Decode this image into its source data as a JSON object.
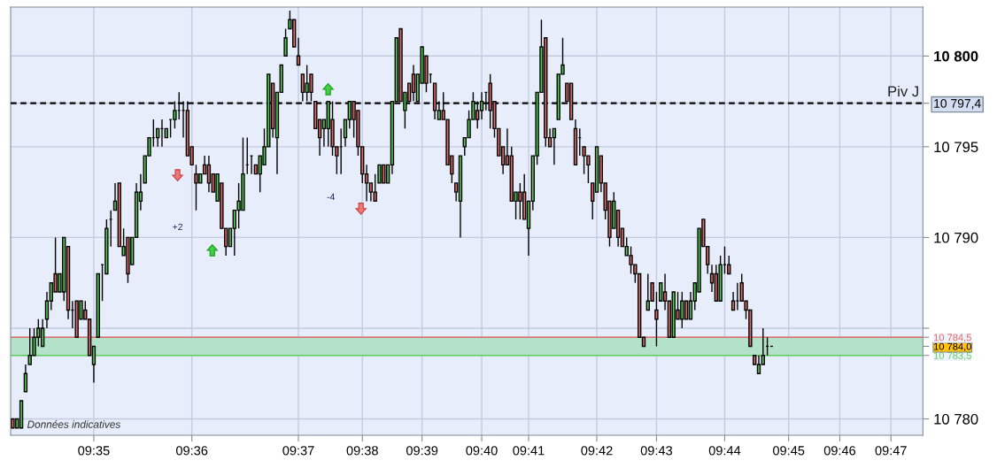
{
  "chart_data": {
    "type": "candlestick",
    "categories": [
      null,
      null,
      null,
      null,
      null,
      null,
      null,
      null,
      null,
      null,
      null,
      null,
      null,
      null,
      null,
      null,
      null,
      null,
      null,
      "09:35",
      null,
      null,
      null,
      null,
      null,
      null,
      null,
      null,
      null,
      null,
      null,
      null,
      null,
      null,
      null,
      null,
      null,
      null,
      null,
      null,
      null,
      null,
      "09:36",
      null,
      null,
      null,
      null,
      null,
      null,
      null,
      null,
      null,
      null,
      null,
      null,
      null,
      null,
      null,
      null,
      null,
      null,
      null,
      null,
      null,
      null,
      null,
      null,
      "09:37",
      null,
      null,
      null,
      null,
      null,
      null,
      null,
      null,
      null,
      null,
      null,
      null,
      null,
      null,
      "09:38",
      null,
      null,
      null,
      null,
      null,
      null,
      null,
      null,
      null,
      null,
      null,
      null,
      null,
      "09:39",
      null,
      null,
      null,
      null,
      null,
      null,
      null,
      null,
      null,
      null,
      null,
      null,
      null,
      "09:40",
      null,
      null,
      null,
      null,
      null,
      null,
      null,
      null,
      null,
      null,
      "09:41",
      null,
      null,
      null,
      null,
      null,
      null,
      null,
      null,
      null,
      null,
      null,
      null,
      null,
      null,
      null,
      "09:42",
      null,
      null,
      null,
      null,
      null,
      null,
      null,
      null,
      null,
      null,
      null,
      null,
      null,
      "09:43",
      null,
      null,
      null,
      null,
      null,
      null,
      null,
      null,
      null,
      null,
      null,
      null,
      null,
      null,
      null,
      "09:44",
      null,
      null,
      null,
      null,
      null,
      null,
      null,
      null,
      null,
      null,
      null,
      null,
      null,
      null,
      "09:45",
      null,
      null,
      null,
      null,
      null,
      null,
      null,
      null,
      null,
      null,
      null,
      "09:46",
      null,
      null,
      null,
      null,
      null,
      null,
      null,
      null,
      null,
      null,
      null,
      "09:47",
      null,
      null,
      null,
      null,
      null,
      null,
      null
    ],
    "ohlc": [
      [
        10780,
        10780,
        10779.5,
        10779.5
      ],
      [
        10779.5,
        10780,
        10779.5,
        10780
      ],
      [
        10779.5,
        10781,
        10779.5,
        10781
      ],
      [
        10781.5,
        10783,
        10781.5,
        10782.5
      ],
      [
        10783,
        10785,
        10783,
        10783.5
      ],
      [
        10783.5,
        10785,
        10783.5,
        10784.5
      ],
      [
        10784.5,
        10785.5,
        10784,
        10785
      ],
      [
        10784,
        10785.5,
        10784,
        10785
      ],
      [
        10785.5,
        10787,
        10785,
        10786.5
      ],
      [
        10786.5,
        10787.5,
        10786,
        10787.5
      ],
      [
        10788,
        10790,
        10787,
        10787
      ],
      [
        10787,
        10788,
        10787,
        10788
      ],
      [
        10787,
        10790,
        10786.5,
        10790
      ],
      [
        10789.5,
        10789.5,
        10785.5,
        10786
      ],
      [
        10786,
        10786.5,
        10785,
        10786
      ],
      [
        10786.5,
        10786.5,
        10784.5,
        10784.5
      ],
      [
        10785.5,
        10786.5,
        10785.5,
        10786.5
      ],
      [
        10786,
        10786.5,
        10785.5,
        10785.5
      ],
      [
        10785.5,
        10785.5,
        10783.5,
        10783.5
      ],
      [
        10783,
        10784,
        10782,
        10784
      ],
      [
        10784.5,
        10788,
        10784.5,
        10788
      ],
      [
        10788.5,
        10788.5,
        10786.5,
        10788.5
      ],
      [
        10788,
        10791,
        10788,
        10790.5
      ],
      [
        10791,
        10791.5,
        10789.5,
        10791
      ],
      [
        10791.5,
        10793,
        10791.5,
        10792
      ],
      [
        10793,
        10793,
        10789.5,
        10789.5
      ],
      [
        10789,
        10790.5,
        10789,
        10789.5
      ],
      [
        10790,
        10790,
        10787.5,
        10788
      ],
      [
        10788.5,
        10790,
        10788.5,
        10790
      ],
      [
        10790,
        10793,
        10790,
        10792.5
      ],
      [
        10792,
        10793.5,
        10791.5,
        10792.5
      ],
      [
        10793,
        10794.5,
        10793,
        10794.5
      ],
      [
        10794.5,
        10795.5,
        10794.5,
        10795.5
      ],
      [
        10795.5,
        10796.5,
        10795,
        10795.5
      ],
      [
        10795.5,
        10796,
        10795,
        10796
      ],
      [
        10796,
        10796.5,
        10795,
        10796
      ],
      [
        10795.5,
        10796,
        10795.5,
        10796
      ],
      [
        10796.5,
        10796.5,
        10795.5,
        10796.5
      ],
      [
        10796.5,
        10797.5,
        10796,
        10797
      ],
      [
        10797,
        10798,
        10796.5,
        10797
      ],
      [
        10797,
        10797.5,
        10795.5,
        10797
      ],
      [
        10797,
        10797.5,
        10794.5,
        10794.5
      ],
      [
        10795,
        10795,
        10794,
        10794
      ],
      [
        10793.5,
        10794,
        10791.5,
        10793
      ],
      [
        10793,
        10793.5,
        10793,
        10793.5
      ],
      [
        10794,
        10794.5,
        10793.5,
        10793.5
      ],
      [
        10794,
        10794.5,
        10792.5,
        10793
      ],
      [
        10793.5,
        10793.5,
        10792.5,
        10792.5
      ],
      [
        10792,
        10793.5,
        10792,
        10793.5
      ],
      [
        10793,
        10793,
        10790.5,
        10790.5
      ],
      [
        10790.5,
        10790.5,
        10789,
        10789.5
      ],
      [
        10789.5,
        10790.5,
        10789.5,
        10790.5
      ],
      [
        10790.5,
        10791.5,
        10789,
        10791.5
      ],
      [
        10791.5,
        10793,
        10790.5,
        10792
      ],
      [
        10791.5,
        10795.5,
        10791.5,
        10793.5
      ],
      [
        10794,
        10795.5,
        10793.5,
        10794
      ],
      [
        10794.5,
        10794.5,
        10793.5,
        10794.5
      ],
      [
        10794,
        10794,
        10793.5,
        10793.5
      ],
      [
        10793.5,
        10794.5,
        10792.5,
        10794.5
      ],
      [
        10794,
        10796,
        10794,
        10795
      ],
      [
        10795,
        10799,
        10795,
        10799
      ],
      [
        10798.5,
        10798.5,
        10795.5,
        10796
      ],
      [
        10795.5,
        10798,
        10793.5,
        10798
      ],
      [
        10798,
        10799.5,
        10798,
        10799.5
      ],
      [
        10800,
        10801.5,
        10800,
        10801
      ],
      [
        10801.5,
        10802.5,
        10801.5,
        10802
      ],
      [
        10802,
        10802,
        10800.5,
        10800.5
      ],
      [
        10800,
        10801,
        10799.5,
        10799.5
      ],
      [
        10799,
        10799,
        10797.5,
        10798
      ],
      [
        10798,
        10799.5,
        10797.5,
        10798.5
      ],
      [
        10799,
        10799,
        10797.5,
        10798
      ],
      [
        10797.5,
        10797.5,
        10796,
        10796
      ],
      [
        10796.5,
        10796.5,
        10794.5,
        10795.5
      ],
      [
        10796,
        10796.5,
        10795,
        10796.5
      ],
      [
        10796,
        10797.5,
        10795,
        10797.5
      ],
      [
        10796.5,
        10797.5,
        10794.5,
        10795
      ],
      [
        10795,
        10795,
        10793.5,
        10794.5
      ],
      [
        10795,
        10796,
        10793.5,
        10795
      ],
      [
        10795.5,
        10796.5,
        10795,
        10796.5
      ],
      [
        10796.5,
        10797.5,
        10796,
        10797.5
      ],
      [
        10797.5,
        10797.5,
        10795.5,
        10796.5
      ],
      [
        10797,
        10797,
        10794.5,
        10795
      ],
      [
        10795,
        10795,
        10793,
        10793.5
      ],
      [
        10793.5,
        10794,
        10792,
        10793
      ],
      [
        10793,
        10793,
        10792,
        10792.5
      ],
      [
        10792.5,
        10793.5,
        10792,
        10792
      ],
      [
        10793,
        10794,
        10793,
        10794
      ],
      [
        10794,
        10794,
        10793,
        10793
      ],
      [
        10793,
        10794,
        10793,
        10794
      ],
      [
        10794,
        10797.5,
        10793.5,
        10797.5
      ],
      [
        10797.5,
        10801,
        10797.5,
        10801
      ],
      [
        10801.5,
        10801.5,
        10797.5,
        10797.5
      ],
      [
        10797,
        10798,
        10796,
        10798
      ],
      [
        10798.5,
        10798.5,
        10797.5,
        10797.5
      ],
      [
        10799,
        10799.5,
        10797.5,
        10798
      ],
      [
        10797.5,
        10799,
        10797.5,
        10799
      ],
      [
        10798.5,
        10800.5,
        10798.5,
        10800.5
      ],
      [
        10800,
        10800,
        10798,
        10798.5
      ],
      [
        10799,
        10799,
        10798.5,
        10799
      ],
      [
        10798.5,
        10798.5,
        10796.5,
        10797
      ],
      [
        10796.5,
        10797.5,
        10796.5,
        10797
      ],
      [
        10797,
        10798,
        10796.5,
        10796.5
      ],
      [
        10796.5,
        10796.5,
        10794,
        10794
      ],
      [
        10794.5,
        10794.5,
        10793,
        10793.5
      ],
      [
        10793,
        10793,
        10792,
        10792.5
      ],
      [
        10792,
        10794.5,
        10790,
        10794.5
      ],
      [
        10795,
        10795.5,
        10794.5,
        10795.5
      ],
      [
        10795.5,
        10797,
        10795.5,
        10796.5
      ],
      [
        10796.5,
        10798,
        10796.5,
        10797.5
      ],
      [
        10797,
        10797.5,
        10796,
        10796.5
      ],
      [
        10797,
        10798,
        10796.5,
        10797.5
      ],
      [
        10798,
        10798,
        10797,
        10798
      ],
      [
        10798.5,
        10799,
        10796,
        10797
      ],
      [
        10797.5,
        10797.5,
        10795.5,
        10796
      ],
      [
        10796,
        10796,
        10794.5,
        10794.5
      ],
      [
        10795,
        10795,
        10793.5,
        10794
      ],
      [
        10794.5,
        10796,
        10794,
        10794
      ],
      [
        10794.5,
        10795,
        10792,
        10792
      ],
      [
        10792,
        10792.5,
        10791,
        10792.5
      ],
      [
        10792.5,
        10793,
        10791,
        10792
      ],
      [
        10792.5,
        10793.5,
        10791,
        10791
      ],
      [
        10790.5,
        10792,
        10789,
        10792
      ],
      [
        10792,
        10794.5,
        10791.5,
        10794.5
      ],
      [
        10794.5,
        10798,
        10794,
        10798
      ],
      [
        10798,
        10802,
        10798,
        10800.5
      ],
      [
        10801,
        10801,
        10795,
        10795.5
      ],
      [
        10795.5,
        10796,
        10795,
        10795
      ],
      [
        10795.5,
        10796,
        10794,
        10796
      ],
      [
        10796.5,
        10799,
        10796.5,
        10799
      ],
      [
        10799,
        10801,
        10799,
        10799.5
      ],
      [
        10798.5,
        10798.5,
        10797.5,
        10797.5
      ],
      [
        10798.5,
        10798.5,
        10796.5,
        10796.5
      ],
      [
        10796,
        10796.5,
        10794,
        10794
      ],
      [
        10795.5,
        10796,
        10794.5,
        10795.5
      ],
      [
        10795,
        10795,
        10793.5,
        10794.5
      ],
      [
        10794.5,
        10794.5,
        10793,
        10794
      ],
      [
        10793,
        10793,
        10791,
        10792
      ],
      [
        10792.5,
        10795,
        10792.5,
        10795
      ],
      [
        10794.5,
        10794.5,
        10792.5,
        10793
      ],
      [
        10793,
        10793,
        10791,
        10791.5
      ],
      [
        10792,
        10792,
        10789.5,
        10790
      ],
      [
        10790.5,
        10792.5,
        10790.5,
        10792
      ],
      [
        10791.5,
        10791.5,
        10789.5,
        10790
      ],
      [
        10790.5,
        10790.5,
        10789.5,
        10789.5
      ],
      [
        10789,
        10790,
        10789,
        10789.5
      ],
      [
        10789,
        10789.5,
        10788,
        10788.5
      ],
      [
        10788.5,
        10788.5,
        10787.5,
        10788
      ],
      [
        10788,
        10788,
        10784.5,
        10784.5
      ],
      [
        10784.5,
        10784.5,
        10784,
        10784
      ],
      [
        10786,
        10788,
        10786,
        10786.5
      ],
      [
        10787.5,
        10787.5,
        10786.5,
        10786.5
      ],
      [
        10786,
        10787,
        10784,
        10785.5
      ],
      [
        10786.5,
        10787.5,
        10786.5,
        10787.5
      ],
      [
        10787,
        10788,
        10786,
        10786.5
      ],
      [
        10786.5,
        10786.5,
        10784.5,
        10784.5
      ],
      [
        10784.5,
        10787,
        10784.5,
        10787
      ],
      [
        10786,
        10787,
        10785.5,
        10785.5
      ],
      [
        10785.5,
        10787,
        10785,
        10786.5
      ],
      [
        10786.5,
        10786.5,
        10785.5,
        10785.5
      ],
      [
        10785.5,
        10787,
        10785.5,
        10786.5
      ],
      [
        10786.5,
        10787.5,
        10786,
        10787.5
      ],
      [
        10787,
        10790.5,
        10787,
        10790.5
      ],
      [
        10791,
        10791,
        10789.5,
        10789.5
      ],
      [
        10789.5,
        10789.5,
        10788,
        10788.5
      ],
      [
        10788,
        10788.5,
        10787,
        10787.5
      ],
      [
        10788,
        10788.5,
        10786.5,
        10786.5
      ],
      [
        10786.5,
        10789,
        10786.5,
        10788.5
      ],
      [
        10788.5,
        10789.5,
        10788,
        10788.5
      ],
      [
        10788.5,
        10789,
        10788,
        10788
      ],
      [
        10786.5,
        10787,
        10786,
        10786
      ],
      [
        10786.5,
        10787.5,
        10786,
        10786.5
      ],
      [
        10787.5,
        10788,
        10786.5,
        10786.5
      ],
      [
        10786.5,
        10786.5,
        10785.5,
        10786
      ],
      [
        10786,
        10786,
        10784,
        10784
      ],
      [
        10783.5,
        10783.5,
        10783,
        10783
      ],
      [
        10782.5,
        10783.5,
        10782.5,
        10783
      ],
      [
        10783,
        10785,
        10783,
        10783.5
      ],
      [
        10784,
        10784.5,
        10783.5,
        10784
      ],
      [
        10784,
        10784,
        10784,
        10784
      ],
      null,
      null,
      null,
      null,
      null,
      null,
      null,
      null,
      null,
      null,
      null,
      null,
      null,
      null,
      null,
      null,
      null,
      null,
      null,
      null,
      null,
      null,
      null,
      null,
      null,
      null,
      null,
      null,
      null,
      null,
      null,
      null,
      null,
      null,
      null
    ],
    "colors": [
      "#e06b6b",
      "#4fd04f",
      "#4fd04f",
      "#4fd04f",
      "#4fd04f",
      "#4fd04f",
      "#4fd04f",
      "#4fd04f",
      "#4fd04f",
      "#4fd04f",
      "#e06b6b",
      "#4fd04f",
      "#4fd04f",
      "#e06b6b",
      "#000000",
      "#e06b6b",
      "#4fd04f",
      "#e06b6b",
      "#e06b6b",
      "#4fd04f",
      "#4fd04f",
      "#000000",
      "#4fd04f",
      "#000000",
      "#4fd04f",
      "#e06b6b",
      "#4fd04f",
      "#e06b6b",
      "#4fd04f",
      "#4fd04f",
      "#4fd04f",
      "#4fd04f",
      "#4fd04f",
      "#000000",
      "#4fd04f",
      "#000000",
      "#4fd04f",
      "#000000",
      "#4fd04f",
      "#000000",
      "#000000",
      "#e06b6b",
      "#e06b6b",
      "#e06b6b",
      "#4fd04f",
      "#e06b6b",
      "#e06b6b",
      "#e06b6b",
      "#4fd04f",
      "#e06b6b",
      "#e06b6b",
      "#4fd04f",
      "#4fd04f",
      "#4fd04f",
      "#4fd04f",
      "#000000",
      "#000000",
      "#e06b6b",
      "#4fd04f",
      "#4fd04f",
      "#4fd04f",
      "#e06b6b",
      "#4fd04f",
      "#4fd04f",
      "#4fd04f",
      "#4fd04f",
      "#e06b6b",
      "#e06b6b",
      "#e06b6b",
      "#4fd04f",
      "#e06b6b",
      "#e06b6b",
      "#e06b6b",
      "#4fd04f",
      "#4fd04f",
      "#e06b6b",
      "#e06b6b",
      "#000000",
      "#4fd04f",
      "#4fd04f",
      "#e06b6b",
      "#e06b6b",
      "#e06b6b",
      "#e06b6b",
      "#e06b6b",
      "#e06b6b",
      "#4fd04f",
      "#e06b6b",
      "#4fd04f",
      "#4fd04f",
      "#4fd04f",
      "#e06b6b",
      "#4fd04f",
      "#e06b6b",
      "#e06b6b",
      "#4fd04f",
      "#4fd04f",
      "#e06b6b",
      "#000000",
      "#e06b6b",
      "#4fd04f",
      "#e06b6b",
      "#e06b6b",
      "#e06b6b",
      "#e06b6b",
      "#4fd04f",
      "#4fd04f",
      "#4fd04f",
      "#4fd04f",
      "#e06b6b",
      "#4fd04f",
      "#000000",
      "#e06b6b",
      "#e06b6b",
      "#e06b6b",
      "#e06b6b",
      "#e06b6b",
      "#e06b6b",
      "#4fd04f",
      "#e06b6b",
      "#e06b6b",
      "#4fd04f",
      "#4fd04f",
      "#4fd04f",
      "#4fd04f",
      "#e06b6b",
      "#e06b6b",
      "#4fd04f",
      "#4fd04f",
      "#4fd04f",
      "#e06b6b",
      "#e06b6b",
      "#e06b6b",
      "#000000",
      "#e06b6b",
      "#e06b6b",
      "#e06b6b",
      "#4fd04f",
      "#e06b6b",
      "#e06b6b",
      "#e06b6b",
      "#4fd04f",
      "#e06b6b",
      "#e06b6b",
      "#4fd04f",
      "#e06b6b",
      "#e06b6b",
      "#e06b6b",
      "#e06b6b",
      "#4fd04f",
      "#e06b6b",
      "#e06b6b",
      "#4fd04f",
      "#e06b6b",
      "#e06b6b",
      "#4fd04f",
      "#e06b6b",
      "#4fd04f",
      "#e06b6b",
      "#4fd04f",
      "#4fd04f",
      "#4fd04f",
      "#e06b6b",
      "#e06b6b",
      "#e06b6b",
      "#e06b6b",
      "#4fd04f",
      "#000000",
      "#e06b6b",
      "#e06b6b",
      "#000000",
      "#e06b6b",
      "#e06b6b",
      "#e06b6b",
      "#e06b6b",
      "#4fd04f",
      "#4fd04f",
      "#000000",
      "#000000",
      null,
      null,
      null,
      null,
      null,
      null,
      null,
      null,
      null,
      null,
      null,
      null,
      null,
      null,
      null,
      null,
      null,
      null,
      null,
      null,
      null,
      null,
      null,
      null,
      null,
      null,
      null,
      null,
      null,
      null,
      null,
      null,
      null,
      null,
      null
    ],
    "ylim": [
      10779.1,
      10802.7
    ],
    "yticks": [
      {
        "value": 10780,
        "label": "10 780"
      },
      {
        "value": 10783.5,
        "label": "10 783,5"
      },
      {
        "value": 10784,
        "label": "10 784,0"
      },
      {
        "value": 10784.5,
        "label": "10 784,5"
      },
      {
        "value": 10785,
        "label": null
      },
      {
        "value": 10790,
        "label": "10 790"
      },
      {
        "value": 10795,
        "label": "10 795"
      },
      {
        "value": 10797.4,
        "label": "10 797,4"
      },
      {
        "value": 10800,
        "label": "10 800"
      }
    ],
    "grid": true,
    "ref_lines": [
      {
        "axis": "y",
        "value": 10797.4,
        "label": "Piv J",
        "color": "#000000",
        "line_style": "dashed"
      },
      {
        "axis": "y",
        "value": 10784.5,
        "color": "#e06b6b",
        "line_style": "solid"
      },
      {
        "axis": "y",
        "value": 10783.5,
        "color": "#5fcf5f",
        "line_style": "solid"
      }
    ],
    "bands": [
      {
        "axis": "y",
        "from": 10783.5,
        "to": 10784.5,
        "color": "#b3e2c9"
      }
    ],
    "annotations": [
      "+2",
      "-4",
      "Données indicatives"
    ]
  }
}
